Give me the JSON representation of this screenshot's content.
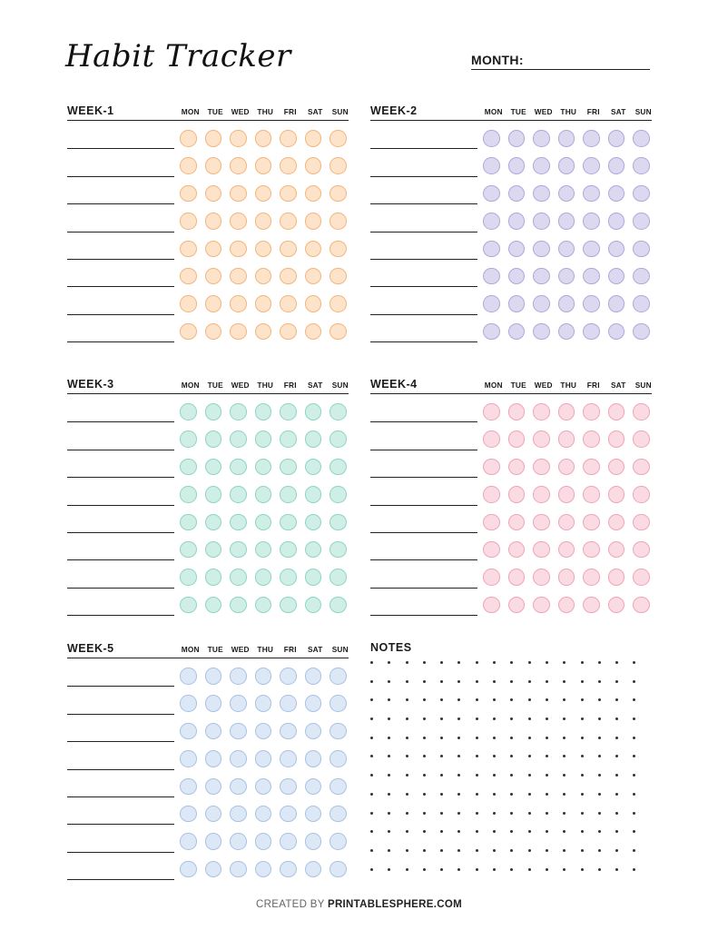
{
  "header": {
    "title": "Habit Tracker",
    "month_label": "MONTH:"
  },
  "days": [
    "MON",
    "TUE",
    "WED",
    "THU",
    "FRI",
    "SAT",
    "SUN"
  ],
  "weeks": [
    {
      "title": "WEEK-1",
      "fill": "#fde3c9",
      "stroke": "#f4b57d",
      "rows": 8
    },
    {
      "title": "WEEK-2",
      "fill": "#dcd8f0",
      "stroke": "#b0a8db",
      "rows": 8
    },
    {
      "title": "WEEK-3",
      "fill": "#cfeee6",
      "stroke": "#8fd5c4",
      "rows": 8
    },
    {
      "title": "WEEK-4",
      "fill": "#fbdbe3",
      "stroke": "#eea5b6",
      "rows": 8
    },
    {
      "title": "WEEK-5",
      "fill": "#dde8f6",
      "stroke": "#a9c2e4",
      "rows": 8
    }
  ],
  "notes": {
    "title": "NOTES"
  },
  "footer": {
    "created_by": "CREATED BY",
    "brand": "PRINTABLESPHERE.COM"
  }
}
